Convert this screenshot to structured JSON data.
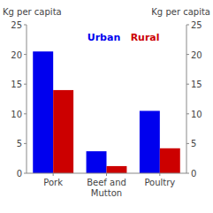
{
  "chart_data": {
    "type": "bar",
    "categories": [
      "Pork",
      "Beef and\nMutton",
      "Poultry"
    ],
    "series": [
      {
        "name": "Urban",
        "color": "#0000EE",
        "values": [
          20.5,
          3.7,
          10.5
        ]
      },
      {
        "name": "Rural",
        "color": "#CC0000",
        "values": [
          14.0,
          1.2,
          4.2
        ]
      }
    ],
    "ylabel": "Kg per capita",
    "y2label": "Kg per capita",
    "ylim": [
      0,
      25
    ],
    "yticks": [
      0,
      5,
      10,
      15,
      20,
      25
    ],
    "y2lim": [
      0,
      25
    ],
    "y2ticks": [
      0,
      5,
      10,
      15,
      20,
      25
    ],
    "legend": "top",
    "grid": false
  }
}
